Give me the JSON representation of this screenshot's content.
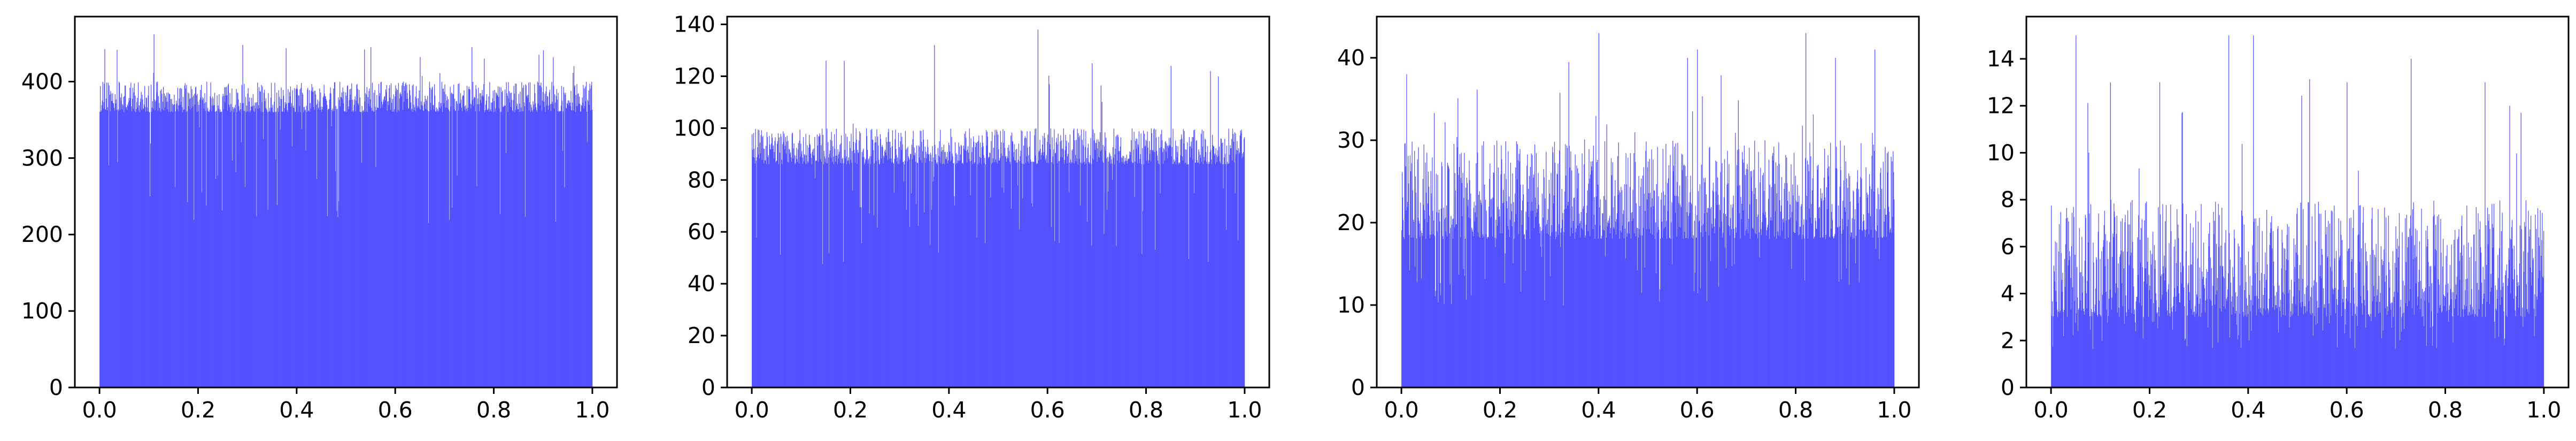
{
  "figure": {
    "bar_color": "#4c4cff",
    "background": "#ffffff"
  },
  "chart_data": [
    {
      "type": "bar",
      "title": "",
      "xlabel": "",
      "ylabel": "",
      "xlim": [
        -0.05,
        1.05
      ],
      "ylim": [
        0,
        485
      ],
      "xticks": [
        "0.0",
        "0.2",
        "0.4",
        "0.6",
        "0.8",
        "1.0"
      ],
      "yticks": [
        "0",
        "100",
        "200",
        "300",
        "400"
      ],
      "series": [
        {
          "bin_range": [
            0,
            1
          ],
          "bins": 1000,
          "base_level": 360,
          "typical_peak": 400,
          "max_peak": 462,
          "notable_peaks": [
            {
              "x": 0.11,
              "y": 462
            },
            {
              "x": 0.29,
              "y": 448
            },
            {
              "x": 0.55,
              "y": 445
            },
            {
              "x": 0.65,
              "y": 432
            },
            {
              "x": 0.78,
              "y": 430
            },
            {
              "x": 0.92,
              "y": 432
            }
          ]
        }
      ]
    },
    {
      "type": "bar",
      "title": "",
      "xlabel": "",
      "ylabel": "",
      "xlim": [
        -0.05,
        1.05
      ],
      "ylim": [
        0,
        143
      ],
      "xticks": [
        "0.0",
        "0.2",
        "0.4",
        "0.6",
        "0.8",
        "1.0"
      ],
      "yticks": [
        "0",
        "20",
        "40",
        "60",
        "80",
        "100",
        "120",
        "140"
      ],
      "series": [
        {
          "bin_range": [
            0,
            1
          ],
          "bins": 1000,
          "base_level": 86,
          "typical_peak": 100,
          "max_peak": 138,
          "notable_peaks": [
            {
              "x": 0.15,
              "y": 126
            },
            {
              "x": 0.37,
              "y": 132
            },
            {
              "x": 0.58,
              "y": 138
            },
            {
              "x": 0.69,
              "y": 125
            },
            {
              "x": 0.85,
              "y": 124
            },
            {
              "x": 0.93,
              "y": 122
            }
          ]
        }
      ]
    },
    {
      "type": "bar",
      "title": "",
      "xlabel": "",
      "ylabel": "",
      "xlim": [
        -0.05,
        1.05
      ],
      "ylim": [
        0,
        45
      ],
      "xticks": [
        "0.0",
        "0.2",
        "0.4",
        "0.6",
        "0.8",
        "1.0"
      ],
      "yticks": [
        "0",
        "10",
        "20",
        "30",
        "40"
      ],
      "series": [
        {
          "bin_range": [
            0,
            1
          ],
          "bins": 1000,
          "base_level": 18,
          "typical_peak": 30,
          "max_peak": 43,
          "notable_peaks": [
            {
              "x": 0.01,
              "y": 38
            },
            {
              "x": 0.4,
              "y": 43
            },
            {
              "x": 0.58,
              "y": 40
            },
            {
              "x": 0.6,
              "y": 41
            },
            {
              "x": 0.82,
              "y": 43
            },
            {
              "x": 0.88,
              "y": 40
            },
            {
              "x": 0.96,
              "y": 41
            }
          ]
        }
      ]
    },
    {
      "type": "bar",
      "title": "",
      "xlabel": "",
      "ylabel": "",
      "xlim": [
        -0.05,
        1.05
      ],
      "ylim": [
        0,
        15.8
      ],
      "xticks": [
        "0.0",
        "0.2",
        "0.4",
        "0.6",
        "0.8",
        "1.0"
      ],
      "yticks": [
        "0",
        "2",
        "4",
        "6",
        "8",
        "10",
        "12",
        "14"
      ],
      "series": [
        {
          "bin_range": [
            0,
            1
          ],
          "bins": 1000,
          "base_level": 3,
          "typical_peak": 8,
          "max_peak": 15,
          "notable_peaks": [
            {
              "x": 0.05,
              "y": 15
            },
            {
              "x": 0.12,
              "y": 13
            },
            {
              "x": 0.22,
              "y": 13
            },
            {
              "x": 0.36,
              "y": 15
            },
            {
              "x": 0.41,
              "y": 15
            },
            {
              "x": 0.6,
              "y": 13
            },
            {
              "x": 0.73,
              "y": 14
            },
            {
              "x": 0.88,
              "y": 13
            },
            {
              "x": 0.93,
              "y": 12
            }
          ]
        }
      ]
    }
  ]
}
